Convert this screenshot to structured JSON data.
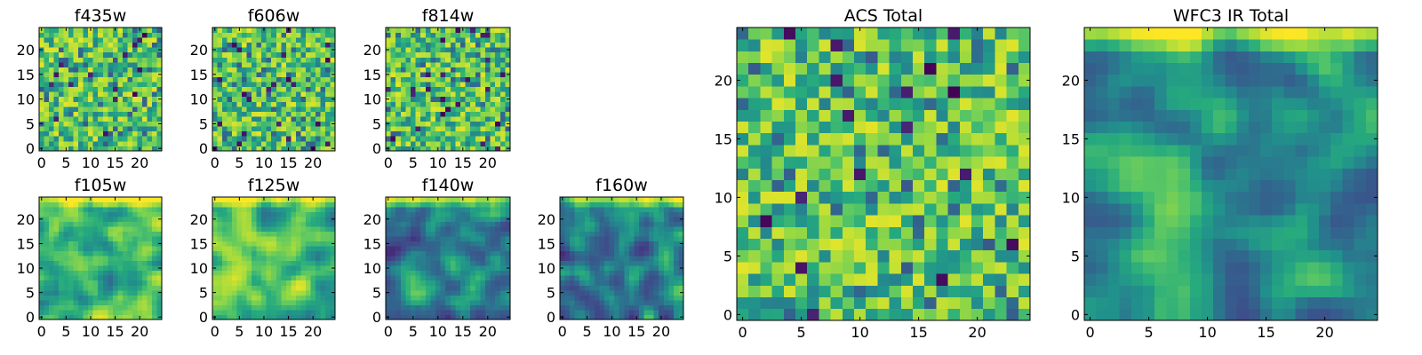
{
  "chart_data": [
    {
      "type": "heatmap",
      "id": "f435w",
      "title": "f435w",
      "x_ticks": [
        "0",
        "5",
        "10",
        "15",
        "20"
      ],
      "y_ticks": [
        "0",
        "5",
        "10",
        "15",
        "20"
      ],
      "xlim": [
        0,
        25
      ],
      "ylim": [
        0,
        25
      ],
      "colormap": "viridis",
      "style": "noisy-bright",
      "seed": 11
    },
    {
      "type": "heatmap",
      "id": "f606w",
      "title": "f606w",
      "x_ticks": [
        "0",
        "5",
        "10",
        "15",
        "20"
      ],
      "y_ticks": [
        "0",
        "5",
        "10",
        "15",
        "20"
      ],
      "xlim": [
        0,
        25
      ],
      "ylim": [
        0,
        25
      ],
      "colormap": "viridis",
      "style": "noisy-bright",
      "seed": 23
    },
    {
      "type": "heatmap",
      "id": "f814w",
      "title": "f814w",
      "x_ticks": [
        "0",
        "5",
        "10",
        "15",
        "20"
      ],
      "y_ticks": [
        "0",
        "5",
        "10",
        "15",
        "20"
      ],
      "xlim": [
        0,
        25
      ],
      "ylim": [
        0,
        25
      ],
      "colormap": "viridis",
      "style": "noisy-bright",
      "seed": 37
    },
    {
      "type": "heatmap",
      "id": "f105w",
      "title": "f105w",
      "x_ticks": [
        "0",
        "5",
        "10",
        "15",
        "20"
      ],
      "y_ticks": [
        "0",
        "5",
        "10",
        "15",
        "20"
      ],
      "xlim": [
        0,
        25
      ],
      "ylim": [
        0,
        25
      ],
      "colormap": "viridis",
      "style": "smooth-bright",
      "seed": 41
    },
    {
      "type": "heatmap",
      "id": "f125w",
      "title": "f125w",
      "x_ticks": [
        "0",
        "5",
        "10",
        "15",
        "20"
      ],
      "y_ticks": [
        "0",
        "5",
        "10",
        "15",
        "20"
      ],
      "xlim": [
        0,
        25
      ],
      "ylim": [
        0,
        25
      ],
      "colormap": "viridis",
      "style": "smooth-bright",
      "seed": 53
    },
    {
      "type": "heatmap",
      "id": "f140w",
      "title": "f140w",
      "x_ticks": [
        "0",
        "5",
        "10",
        "15",
        "20"
      ],
      "y_ticks": [
        "0",
        "5",
        "10",
        "15",
        "20"
      ],
      "xlim": [
        0,
        25
      ],
      "ylim": [
        0,
        25
      ],
      "colormap": "viridis",
      "style": "smooth-dark",
      "seed": 67
    },
    {
      "type": "heatmap",
      "id": "f160w",
      "title": "f160w",
      "x_ticks": [
        "0",
        "5",
        "10",
        "15",
        "20"
      ],
      "y_ticks": [
        "0",
        "5",
        "10",
        "15",
        "20"
      ],
      "xlim": [
        0,
        25
      ],
      "ylim": [
        0,
        25
      ],
      "colormap": "viridis",
      "style": "smooth-dark",
      "seed": 79
    },
    {
      "type": "heatmap",
      "id": "acs-total",
      "title": "ACS Total",
      "x_ticks": [
        "0",
        "5",
        "10",
        "15",
        "20"
      ],
      "y_ticks": [
        "0",
        "5",
        "10",
        "15",
        "20"
      ],
      "xlim": [
        0,
        25
      ],
      "ylim": [
        0,
        25
      ],
      "colormap": "viridis",
      "style": "noisy-bright",
      "seed": 97
    },
    {
      "type": "heatmap",
      "id": "wfc3-ir-total",
      "title": "WFC3 IR Total",
      "x_ticks": [
        "0",
        "5",
        "10",
        "15",
        "20"
      ],
      "y_ticks": [
        "0",
        "5",
        "10",
        "15",
        "20"
      ],
      "xlim": [
        0,
        25
      ],
      "ylim": [
        0,
        25
      ],
      "colormap": "viridis",
      "style": "smooth-mid",
      "seed": 101
    }
  ]
}
